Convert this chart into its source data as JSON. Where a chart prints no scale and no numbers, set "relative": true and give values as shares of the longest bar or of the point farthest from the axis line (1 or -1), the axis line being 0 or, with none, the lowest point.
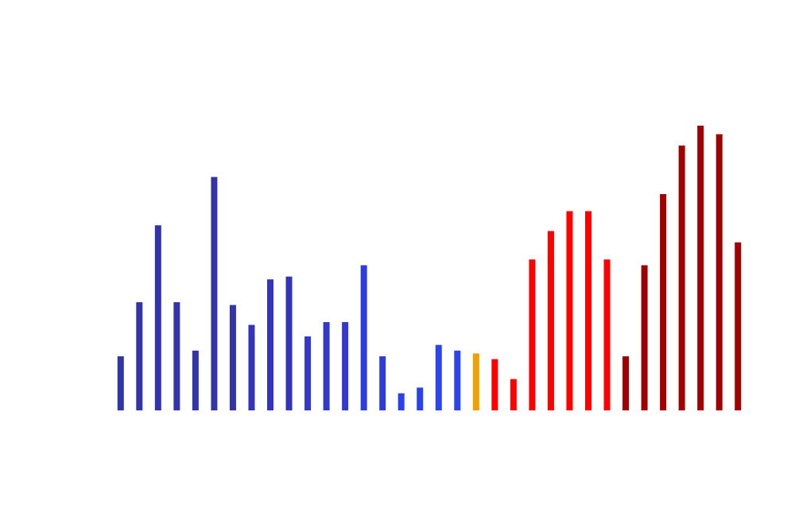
{
  "chart_data": {
    "type": "bar",
    "relative": true,
    "categories": [
      null,
      null,
      null,
      null,
      null,
      null,
      null,
      null,
      null,
      null,
      null,
      null,
      null,
      null,
      null,
      null,
      null,
      null,
      null,
      null,
      null,
      null,
      null,
      null,
      null,
      null,
      null,
      null,
      null,
      null,
      null,
      null,
      null,
      null
    ],
    "values": [
      0.19,
      0.38,
      0.65,
      0.38,
      0.21,
      0.82,
      0.37,
      0.3,
      0.46,
      0.47,
      0.26,
      0.31,
      0.31,
      0.51,
      0.19,
      0.06,
      0.08,
      0.23,
      0.21,
      0.2,
      0.18,
      0.11,
      0.53,
      0.63,
      0.7,
      0.7,
      0.53,
      0.19,
      0.51,
      0.76,
      0.93,
      1,
      0.97,
      0.59
    ],
    "colors": [
      "#3333aa",
      "#3333aa",
      "#3333aa",
      "#3333aa",
      "#3333aa",
      "#3333aa",
      "#3333aa",
      "#3333bb",
      "#3333bb",
      "#3333bb",
      "#3238cc",
      "#3238cc",
      "#3238cc",
      "#2f3cdd",
      "#2f3cdd",
      "#2b40ee",
      "#2b40ee",
      "#2b44ee",
      "#2b44ee",
      "#f0a000",
      "#ff0000",
      "#ff0000",
      "#ff0000",
      "#ff0000",
      "#ff0000",
      "#ff0000",
      "#ff0000",
      "#a00000",
      "#a00000",
      "#a00000",
      "#a00000",
      "#a00000",
      "#a00000",
      "#a00000"
    ]
  }
}
